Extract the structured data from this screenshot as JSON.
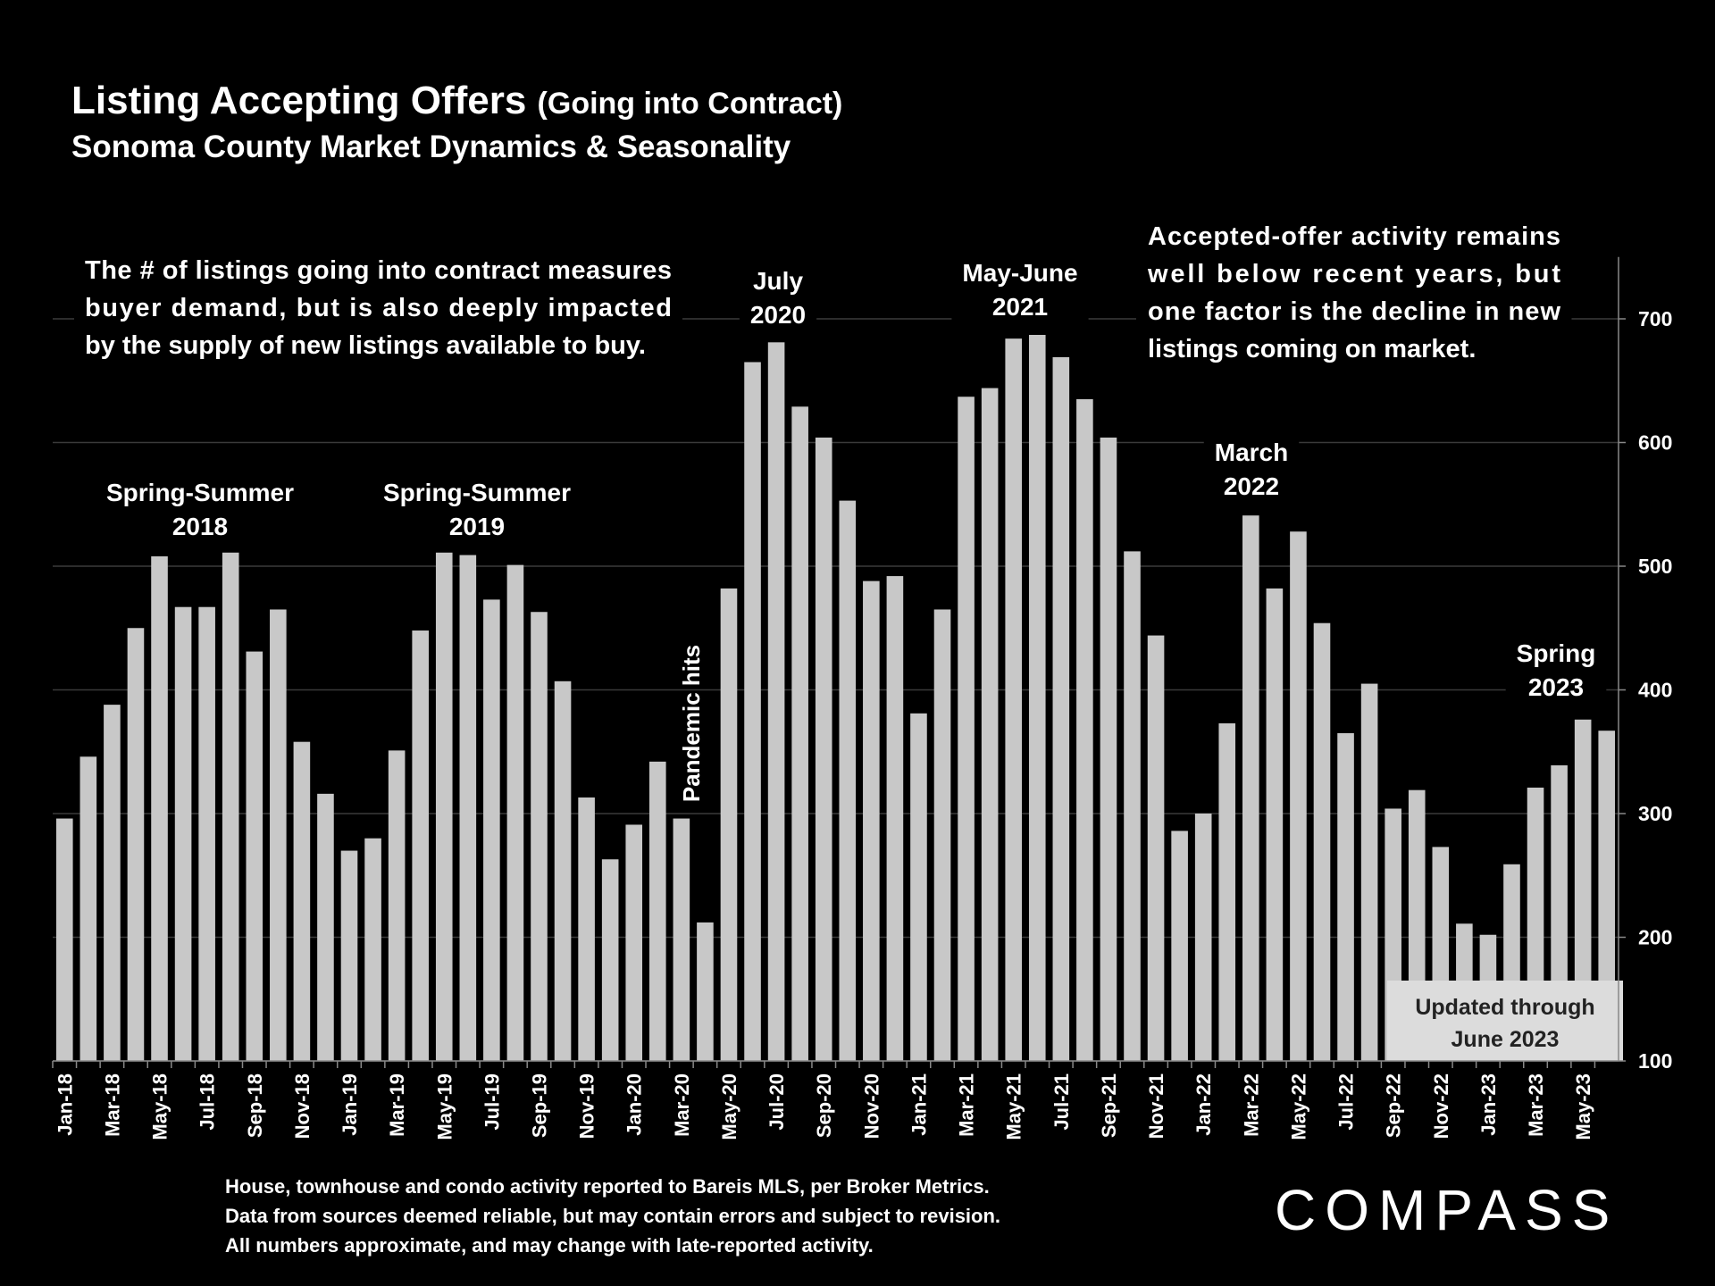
{
  "chart_data": {
    "type": "bar",
    "title": "Listing Accepting Offers",
    "title_note": "(Going into Contract)",
    "subtitle": "Sonoma County Market Dynamics & Seasonality",
    "categories": [
      "Jan-18",
      null,
      "Mar-18",
      null,
      "May-18",
      null,
      "Jul-18",
      null,
      "Sep-18",
      null,
      "Nov-18",
      null,
      "Jan-19",
      null,
      "Mar-19",
      null,
      "May-19",
      null,
      "Jul-19",
      null,
      "Sep-19",
      null,
      "Nov-19",
      null,
      "Jan-20",
      null,
      "Mar-20",
      null,
      "May-20",
      null,
      "Jul-20",
      null,
      "Sep-20",
      null,
      "Nov-20",
      null,
      "Jan-21",
      null,
      "Mar-21",
      null,
      "May-21",
      null,
      "Jul-21",
      null,
      "Sep-21",
      null,
      "Nov-21",
      null,
      "Jan-22",
      null,
      "Mar-22",
      null,
      "May-22",
      null,
      "Jul-22",
      null,
      "Sep-22",
      null,
      "Nov-22",
      null,
      "Jan-23",
      null,
      "Mar-23",
      null,
      "May-23",
      null
    ],
    "values": [
      296,
      346,
      388,
      450,
      508,
      467,
      467,
      511,
      431,
      465,
      358,
      316,
      270,
      280,
      351,
      448,
      511,
      509,
      473,
      501,
      463,
      407,
      313,
      263,
      291,
      342,
      296,
      212,
      482,
      665,
      681,
      629,
      604,
      553,
      488,
      492,
      381,
      465,
      637,
      644,
      684,
      687,
      669,
      635,
      604,
      512,
      444,
      286,
      300,
      373,
      541,
      482,
      528,
      454,
      365,
      405,
      304,
      319,
      273,
      211,
      202,
      259,
      321,
      339,
      376,
      367
    ],
    "color": "#c8c8c8",
    "ylim": [
      100,
      750
    ],
    "yticks": [
      100,
      200,
      300,
      400,
      500,
      600,
      700
    ],
    "grid": true,
    "y_axis_side": "right",
    "annotations": [
      {
        "lines": [
          "The # of listings going into contract measures",
          "buyer demand, but is also deeply impacted",
          "by the supply of new listings available to buy."
        ]
      },
      {
        "lines": [
          "Accepted-offer activity remains",
          "well below recent years, but",
          "one factor is the decline in new",
          "listings coming on market."
        ]
      },
      {
        "lines": [
          "Spring-Summer",
          "2018"
        ]
      },
      {
        "lines": [
          "Spring-Summer",
          "2019"
        ]
      },
      {
        "lines": [
          "Pandemic hits"
        ]
      },
      {
        "lines": [
          "July",
          "2020"
        ]
      },
      {
        "lines": [
          "May-June",
          "2021"
        ]
      },
      {
        "lines": [
          "March",
          "2022"
        ]
      },
      {
        "lines": [
          "Spring",
          "2023"
        ]
      },
      {
        "lines": [
          "Updated through",
          "June 2023"
        ]
      }
    ],
    "footnote": [
      "House, townhouse and condo activity reported to Bareis MLS, per Broker Metrics.",
      "Data from sources deemed reliable, but may contain errors and subject to revision.",
      "All numbers approximate, and may change with late-reported activity."
    ],
    "logo": "COMPASS"
  }
}
